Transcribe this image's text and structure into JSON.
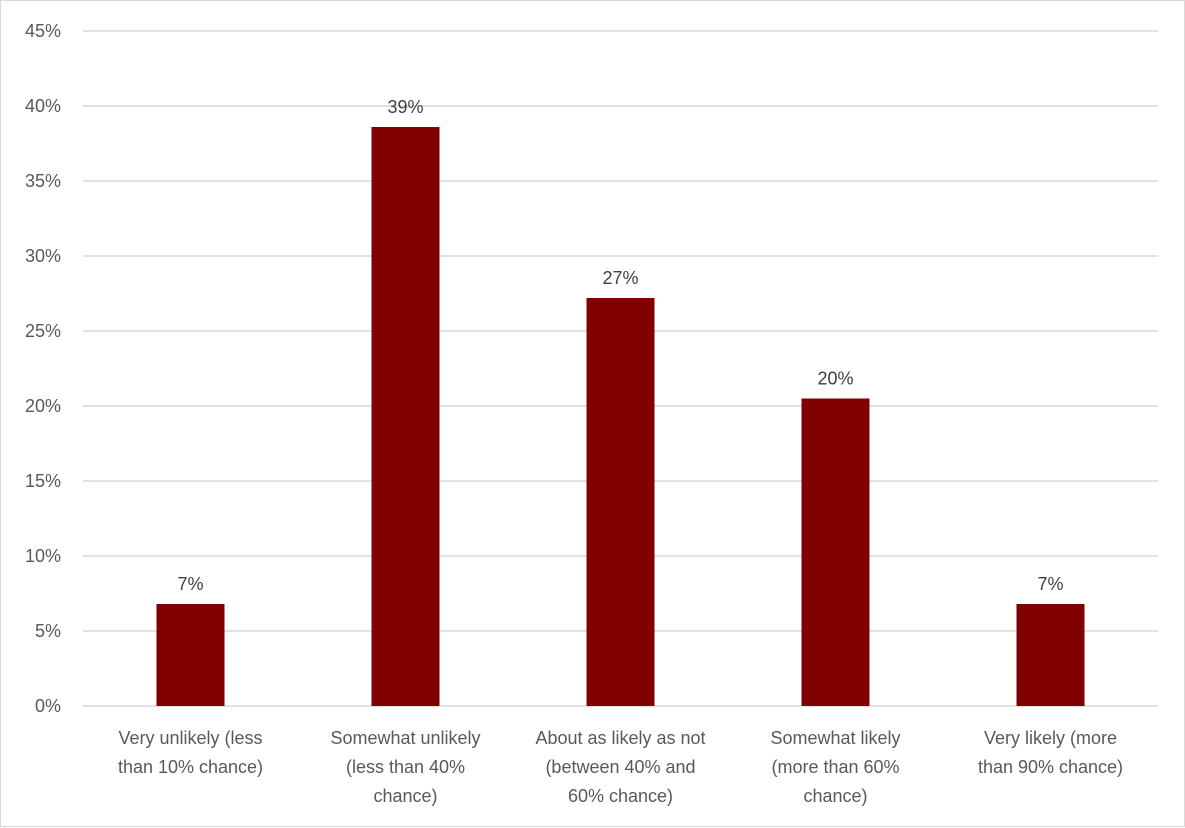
{
  "chart_data": {
    "type": "bar",
    "categories": [
      [
        "Very unlikely (less",
        "than 10% chance)"
      ],
      [
        "Somewhat unlikely",
        "(less than 40%",
        "chance)"
      ],
      [
        "About as likely as not",
        "(between 40% and",
        "60% chance)"
      ],
      [
        "Somewhat likely",
        "(more than 60%",
        "chance)"
      ],
      [
        "Very likely (more",
        "than 90% chance)"
      ]
    ],
    "values": [
      6.8,
      38.6,
      27.2,
      20.5,
      6.8
    ],
    "data_labels": [
      "7%",
      "39%",
      "27%",
      "20%",
      "7%"
    ],
    "y_ticks": [
      "0%",
      "5%",
      "10%",
      "15%",
      "20%",
      "25%",
      "30%",
      "35%",
      "40%",
      "45%"
    ],
    "ylim": [
      0,
      45
    ],
    "grid": true,
    "legend": "none",
    "bar_color": "#800000"
  }
}
